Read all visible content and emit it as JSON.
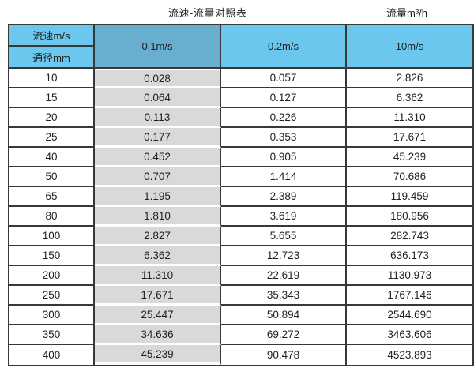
{
  "page": {
    "title_left": "流速-流量对照表",
    "title_right": "流量m³/h"
  },
  "table": {
    "header": {
      "velocity_label": "流速m/s",
      "diameter_label": "通径mm",
      "columns": [
        "0.1m/s",
        "0.2m/s",
        "10m/s"
      ]
    },
    "rows": [
      [
        "10",
        "0.028",
        "0.057",
        "2.826"
      ],
      [
        "15",
        "0.064",
        "0.127",
        "6.362"
      ],
      [
        "20",
        "0.113",
        "0.226",
        "11.310"
      ],
      [
        "25",
        "0.177",
        "0.353",
        "17.671"
      ],
      [
        "40",
        "0.452",
        "0.905",
        "45.239"
      ],
      [
        "50",
        "0.707",
        "1.414",
        "70.686"
      ],
      [
        "65",
        "1.195",
        "2.389",
        "119.459"
      ],
      [
        "80",
        "1.810",
        "3.619",
        "180.956"
      ],
      [
        "100",
        "2.827",
        "5.655",
        "282.743"
      ],
      [
        "150",
        "6.362",
        "12.723",
        "636.173"
      ],
      [
        "200",
        "11.310",
        "22.619",
        "1130.973"
      ],
      [
        "250",
        "17.671",
        "35.343",
        "1767.146"
      ],
      [
        "300",
        "25.447",
        "50.894",
        "2544.690"
      ],
      [
        "350",
        "34.636",
        "69.272",
        "3463.606"
      ],
      [
        "400",
        "45.239",
        "90.478",
        "4523.893"
      ]
    ]
  },
  "colors": {
    "header_blue": "#6cc7ef",
    "header_blue_dark": "#68aece",
    "highlight_gray": "#d9d9d9",
    "border_dark": "#383838",
    "text": "#1f1f1f"
  }
}
